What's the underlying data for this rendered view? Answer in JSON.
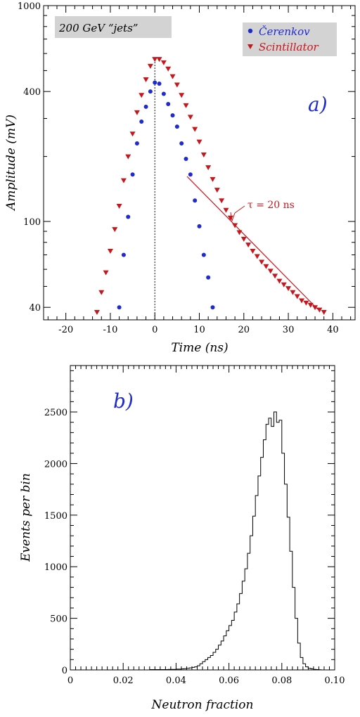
{
  "chart_data": [
    {
      "type": "scatter",
      "panel_label": "a)",
      "annotation_box": "200 GeV “jets”",
      "xlabel": "Time (ns)",
      "ylabel": "Amplitude (mV)",
      "xlim": [
        -25,
        45
      ],
      "ylim": [
        35,
        1000
      ],
      "yscale": "log",
      "xticks": [
        -20,
        -10,
        0,
        10,
        20,
        30,
        40
      ],
      "xtick_labels": [
        "-20",
        "-10",
        "0",
        "10",
        "20",
        "30",
        "40"
      ],
      "yticks": [
        40,
        100,
        400,
        1000
      ],
      "ytick_labels": [
        "40",
        "100",
        "400",
        "1000"
      ],
      "legend_position": "top-right",
      "grid": false,
      "series": [
        {
          "name": "Čerenkov",
          "marker": "circle",
          "color": "#1f2bcf",
          "x": [
            -8,
            -7,
            -6,
            -5,
            -4,
            -3,
            -2,
            -1,
            0,
            1,
            2,
            3,
            4,
            5,
            6,
            7,
            8,
            9,
            10,
            11,
            12,
            13
          ],
          "y": [
            40,
            70,
            105,
            165,
            230,
            290,
            340,
            400,
            440,
            435,
            390,
            350,
            310,
            275,
            230,
            195,
            165,
            125,
            95,
            70,
            55,
            40
          ]
        },
        {
          "name": "Scintillator",
          "marker": "triangle-down",
          "color": "#c8161d",
          "x": [
            -13,
            -12,
            -11,
            -10,
            -9,
            -8,
            -7,
            -6,
            -5,
            -4,
            -3,
            -2,
            -1,
            0,
            1,
            2,
            3,
            4,
            5,
            6,
            7,
            8,
            9,
            10,
            11,
            12,
            13,
            14,
            15,
            16,
            17,
            18,
            19,
            20,
            21,
            22,
            23,
            24,
            25,
            26,
            27,
            28,
            29,
            30,
            31,
            32,
            33,
            34,
            35,
            36,
            37,
            38
          ],
          "y": [
            38,
            47,
            58,
            73,
            92,
            118,
            155,
            200,
            255,
            320,
            385,
            455,
            525,
            565,
            565,
            545,
            510,
            470,
            430,
            385,
            345,
            305,
            268,
            234,
            204,
            178,
            157,
            140,
            125,
            113,
            104,
            96,
            89,
            83,
            78,
            73,
            69,
            65,
            62,
            59,
            56,
            53,
            51,
            49,
            47,
            45,
            43,
            42,
            41,
            40,
            39,
            38
          ]
        }
      ],
      "annotations": [
        {
          "text": "τ = 20 ns"
        }
      ],
      "reference_line_x": 0
    },
    {
      "type": "histogram",
      "panel_label": "b)",
      "xlabel": "Neutron fraction",
      "ylabel": "Events per bin",
      "xlim": [
        0,
        0.1
      ],
      "ylim": [
        0,
        2950
      ],
      "xticks": [
        0,
        0.02,
        0.04,
        0.06,
        0.08,
        0.1
      ],
      "xtick_labels": [
        "0",
        "0.02",
        "0.04",
        "0.06",
        "0.08",
        "0.10"
      ],
      "yticks": [
        0,
        500,
        1000,
        1500,
        2000,
        2500
      ],
      "ytick_labels": [
        "0",
        "500",
        "1000",
        "1500",
        "2000",
        "2500"
      ],
      "grid": false,
      "bin_width": 0.001,
      "bins_start": 0.03,
      "values": [
        3,
        3,
        3,
        3,
        3,
        3,
        3,
        5,
        5,
        5,
        8,
        8,
        10,
        12,
        15,
        20,
        25,
        30,
        40,
        60,
        80,
        100,
        120,
        140,
        170,
        200,
        240,
        280,
        330,
        380,
        430,
        480,
        560,
        640,
        740,
        860,
        980,
        1130,
        1300,
        1490,
        1690,
        1880,
        2060,
        2230,
        2380,
        2440,
        2360,
        2500,
        2400,
        2420,
        2100,
        1800,
        1480,
        1150,
        800,
        500,
        260,
        120,
        60,
        30,
        15,
        10,
        5,
        3,
        2
      ]
    }
  ]
}
